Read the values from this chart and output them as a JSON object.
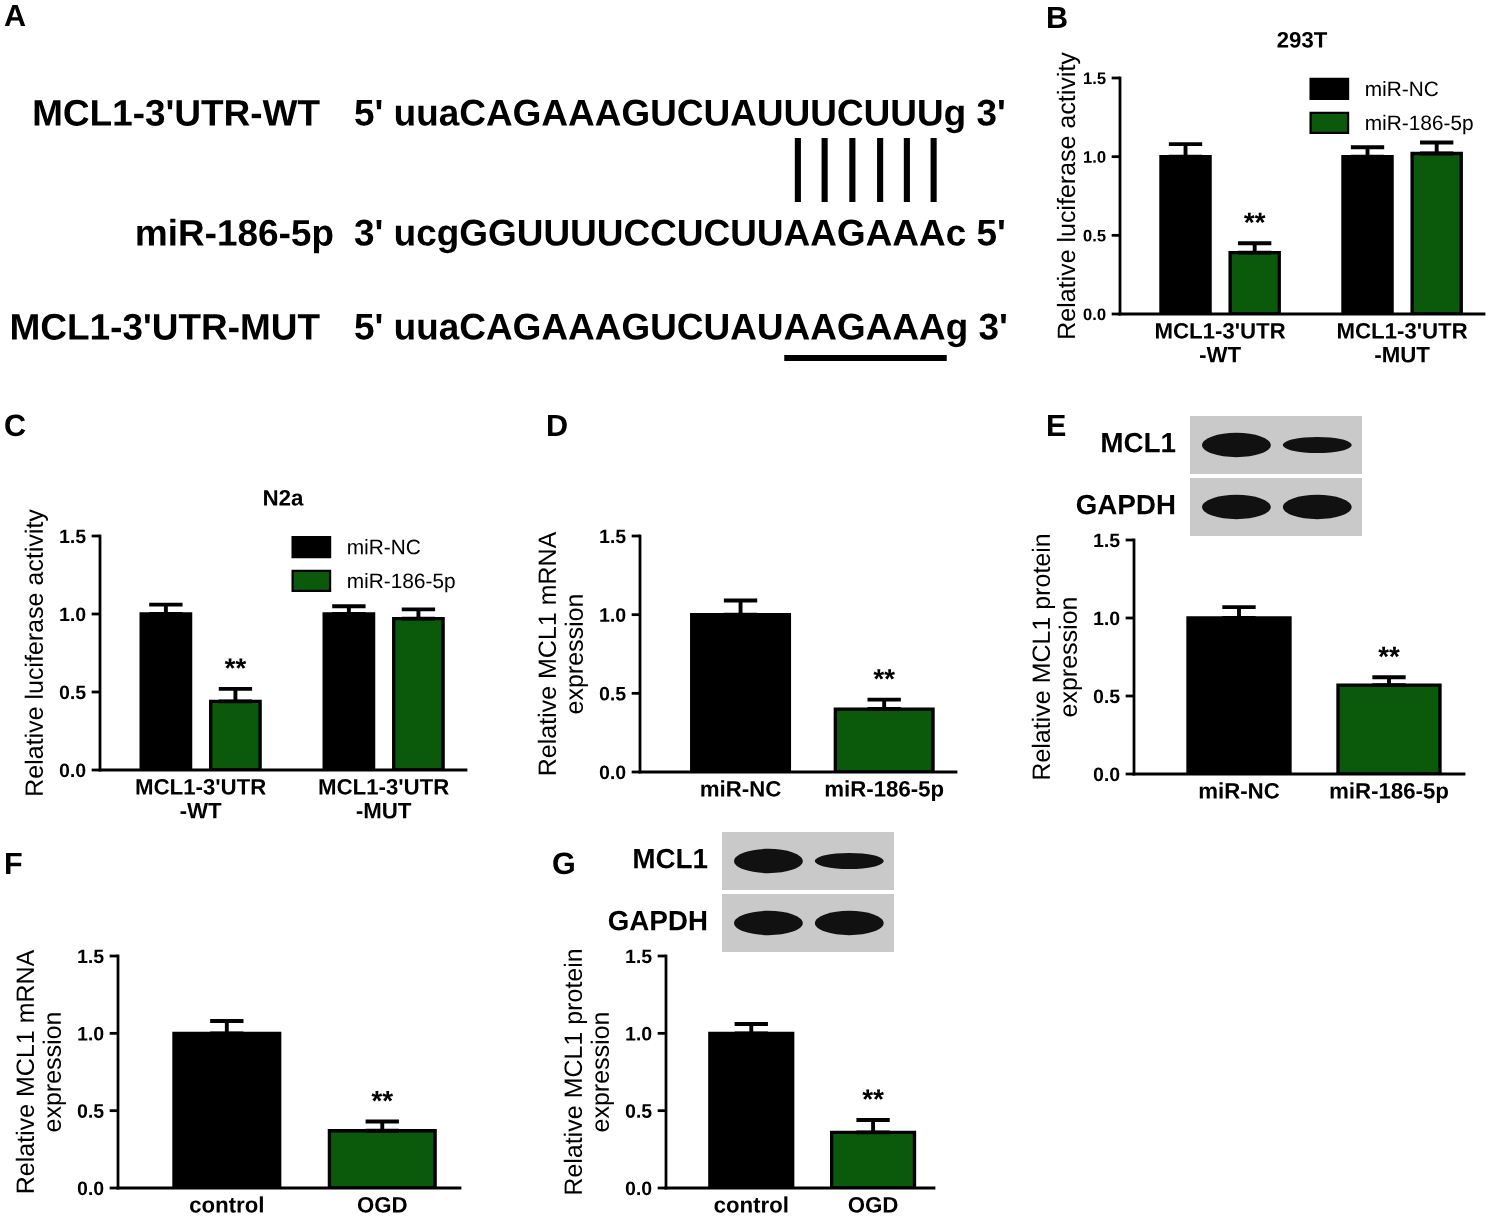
{
  "chart_data": [
    {
      "type": "other",
      "annotations": [
        "A",
        "MCL1-3'UTR-WT",
        "5' uuaCAGAAAGUCUAUUUCUUUg 3'",
        "miR-186-5p",
        "3' ucgGGUUUUCCUCUUAAGAAAc 5'",
        "MCL1-3'UTR-MUT",
        "5' uuaCAGAAAGUCUAUAAGAAAg 3'"
      ]
    },
    {
      "type": "bar",
      "title": "293T",
      "ylabel": "Relative luciferase activity",
      "categories": [
        "MCL1-3'UTR\n-WT",
        "MCL1-3'UTR\n-MUT"
      ],
      "series": [
        {
          "name": "miR-NC",
          "color": "#000000",
          "values": [
            1.0,
            1.0
          ],
          "errors": [
            [
              1.0,
              1.08
            ],
            [
              1.0,
              1.06
            ]
          ]
        },
        {
          "name": "miR-186-5p",
          "color": "#0b5a0b",
          "values": [
            0.39,
            1.02
          ],
          "errors": [
            [
              0.39,
              0.45
            ],
            [
              1.02,
              1.09
            ]
          ]
        }
      ],
      "ylim": [
        0,
        1.5
      ],
      "yticks": [
        {
          "value": 0,
          "label": "0.0"
        },
        {
          "value": 0.5,
          "label": "0.5"
        },
        {
          "value": 1,
          "label": "1.0"
        },
        {
          "value": 1.5,
          "label": "1.5"
        }
      ],
      "legend": "top right",
      "annotations": [
        "B",
        "**"
      ]
    },
    {
      "type": "bar",
      "title": "N2a",
      "ylabel": "Relative luciferase activity",
      "categories": [
        "MCL1-3'UTR\n-WT",
        "MCL1-3'UTR\n-MUT"
      ],
      "series": [
        {
          "name": "miR-NC",
          "color": "#000000",
          "values": [
            1.0,
            1.0
          ],
          "errors": [
            [
              1.0,
              1.06
            ],
            [
              1.0,
              1.05
            ]
          ]
        },
        {
          "name": "miR-186-5p",
          "color": "#0b5a0b",
          "values": [
            0.44,
            0.97
          ],
          "errors": [
            [
              0.44,
              0.52
            ],
            [
              0.97,
              1.03
            ]
          ]
        }
      ],
      "ylim": [
        0,
        1.5
      ],
      "yticks": [
        {
          "value": 0,
          "label": "0.0"
        },
        {
          "value": 0.5,
          "label": "0.5"
        },
        {
          "value": 1,
          "label": "1.0"
        },
        {
          "value": 1.5,
          "label": "1.5"
        }
      ],
      "legend": "top right",
      "annotations": [
        "C",
        "**"
      ]
    },
    {
      "type": "bar",
      "ylabel": "Relative MCL1 mRNA\nexpression",
      "categories": [
        "miR-NC",
        "miR-186-5p"
      ],
      "values": [
        1.0,
        0.4
      ],
      "errors": [
        [
          1.0,
          1.09
        ],
        [
          0.4,
          0.46
        ]
      ],
      "colors": [
        "#000000",
        "#0b5a0b"
      ],
      "ylim": [
        0,
        1.5
      ],
      "yticks": [
        {
          "value": 0,
          "label": "0.0"
        },
        {
          "value": 0.5,
          "label": "0.5"
        },
        {
          "value": 1,
          "label": "1.0"
        },
        {
          "value": 1.5,
          "label": "1.5"
        }
      ],
      "annotations": [
        "D",
        "**"
      ]
    },
    {
      "type": "bar",
      "ylabel": "Relative MCL1 protein\nexpression",
      "categories": [
        "miR-NC",
        "miR-186-5p"
      ],
      "values": [
        1.0,
        0.57
      ],
      "errors": [
        [
          1.0,
          1.07
        ],
        [
          0.57,
          0.62
        ]
      ],
      "colors": [
        "#000000",
        "#0b5a0b"
      ],
      "ylim": [
        0,
        1.5
      ],
      "yticks": [
        {
          "value": 0,
          "label": "0.0"
        },
        {
          "value": 0.5,
          "label": "0.5"
        },
        {
          "value": 1,
          "label": "1.0"
        },
        {
          "value": 1.5,
          "label": "1.5"
        }
      ],
      "annotations": [
        "E",
        "MCL1",
        "GAPDH",
        "**"
      ]
    },
    {
      "type": "bar",
      "ylabel": "Relative MCL1 mRNA\nexpression",
      "categories": [
        "control",
        "OGD"
      ],
      "values": [
        1.0,
        0.37
      ],
      "errors": [
        [
          1.0,
          1.08
        ],
        [
          0.37,
          0.43
        ]
      ],
      "colors": [
        "#000000",
        "#0b5a0b"
      ],
      "ylim": [
        0,
        1.5
      ],
      "yticks": [
        {
          "value": 0,
          "label": "0.0"
        },
        {
          "value": 0.5,
          "label": "0.5"
        },
        {
          "value": 1,
          "label": "1.0"
        },
        {
          "value": 1.5,
          "label": "1.5"
        }
      ],
      "annotations": [
        "F",
        "**"
      ]
    },
    {
      "type": "bar",
      "ylabel": "Relative MCL1 protein\nexpression",
      "categories": [
        "control",
        "OGD"
      ],
      "values": [
        1.0,
        0.36
      ],
      "errors": [
        [
          1.0,
          1.06
        ],
        [
          0.36,
          0.44
        ]
      ],
      "colors": [
        "#000000",
        "#0b5a0b"
      ],
      "ylim": [
        0,
        1.5
      ],
      "yticks": [
        {
          "value": 0,
          "label": "0.0"
        },
        {
          "value": 0.5,
          "label": "0.5"
        },
        {
          "value": 1,
          "label": "1.0"
        },
        {
          "value": 1.5,
          "label": "1.5"
        }
      ],
      "annotations": [
        "G",
        "MCL1",
        "GAPDH",
        "**"
      ]
    }
  ]
}
